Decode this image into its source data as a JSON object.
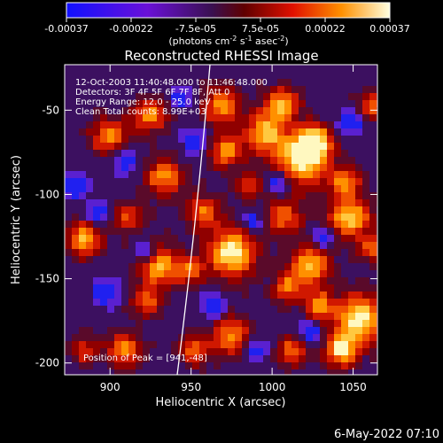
{
  "colorbar": {
    "tick_labels": [
      "-0.00037",
      "-0.00022",
      "-7.5e-05",
      "7.5e-05",
      "0.00022",
      "0.00037"
    ],
    "units_text": "(photons cm",
    "units_exp1": "-2",
    "units_text2": " s",
    "units_exp2": "-1",
    "units_text3": " asec",
    "units_exp3": "-2",
    "units_text4": ")"
  },
  "plot": {
    "title": "Reconstructed RHESSI Image",
    "time_range": "12-Oct-2003 11:40:48.000 to 11:46:48.000",
    "detectors": "Detectors: 3F 4F 5F 6F 7F 8F, Att 0",
    "energy_range": "Energy Range: 12.0 - 25.0 keV",
    "clean_counts": "Clean     Total counts: 8.99E+03",
    "peak_position": "Position of Peak = [941,-48]",
    "xlabel": "Heliocentric X (arcsec)",
    "ylabel": "Heliocentric Y (arcsec)",
    "x_ticks": [
      "900",
      "950",
      "1000",
      "1050"
    ],
    "y_ticks": [
      "-50",
      "-100",
      "-150",
      "-200"
    ],
    "x_range": [
      872,
      1065
    ],
    "y_range": [
      -207,
      -23
    ]
  },
  "footer": {
    "timestamp": "6-May-2022 07:10"
  }
}
